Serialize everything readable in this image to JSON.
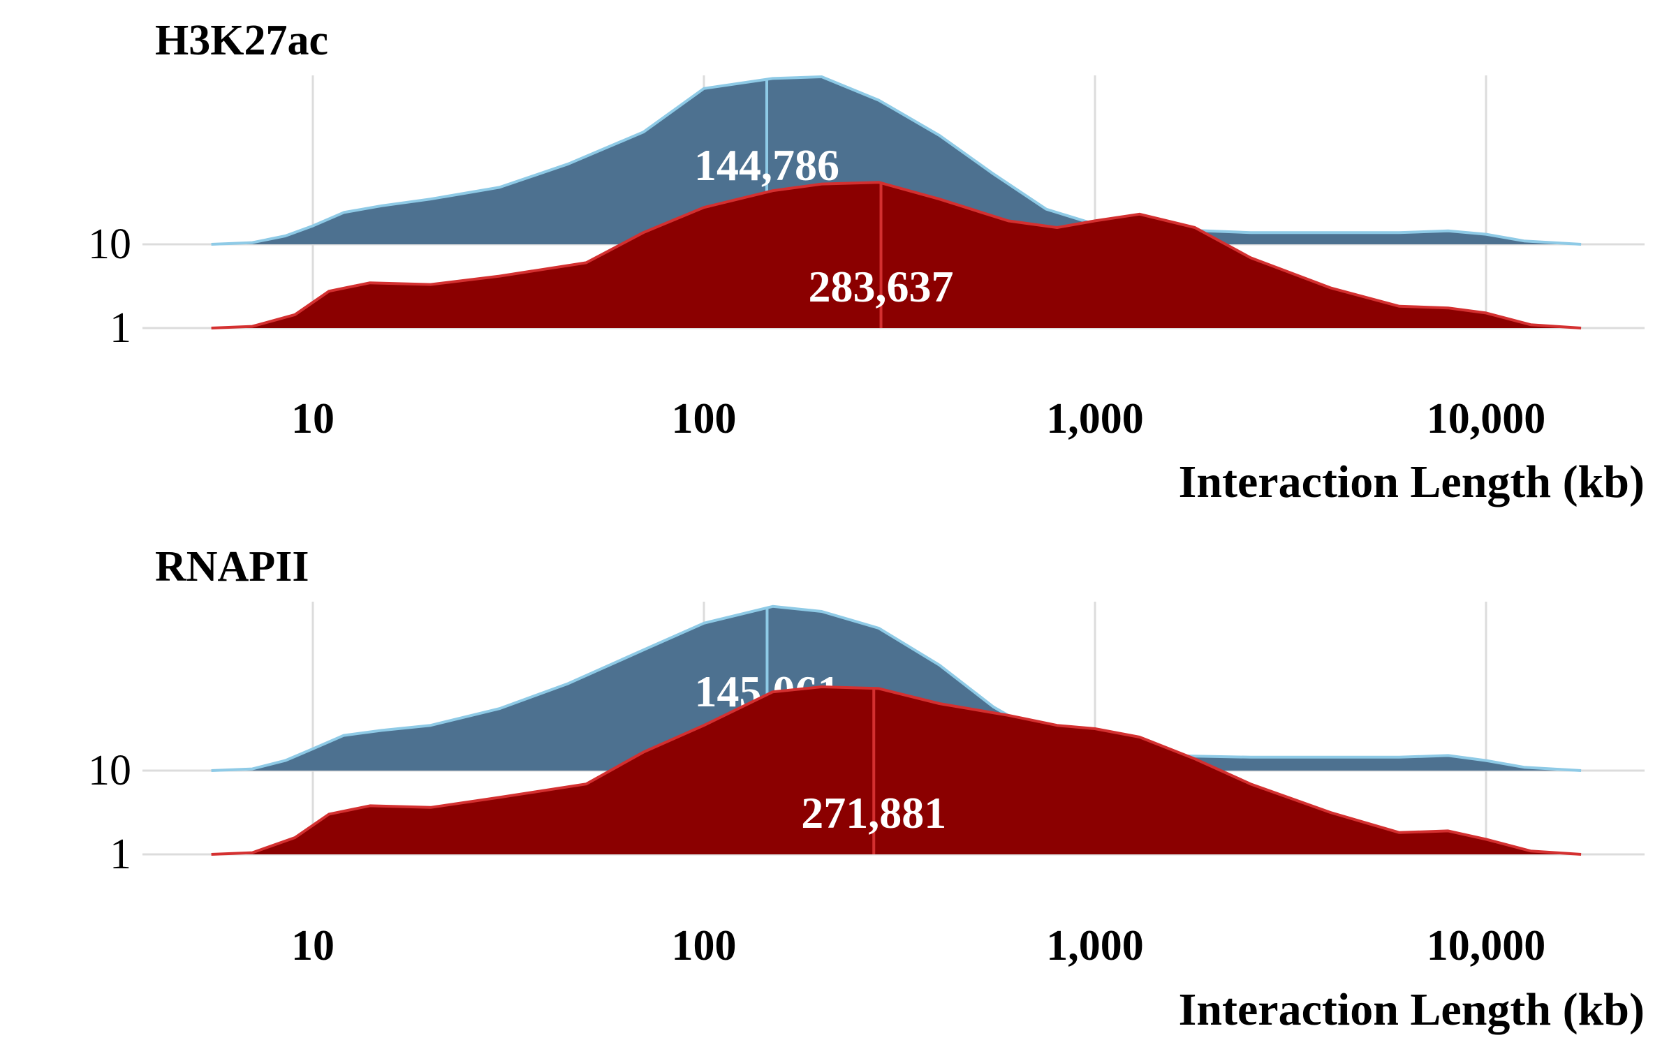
{
  "chart_data": [
    {
      "type": "area",
      "title": "H3K27ac",
      "xlabel": "Interaction Length (kb)",
      "ylabel": "",
      "x_scale": "log10",
      "xlim": [
        5.5,
        17500
      ],
      "x_ticks": [
        {
          "value": 10,
          "label": "10"
        },
        {
          "value": 100,
          "label": "100"
        },
        {
          "value": 1000,
          "label": "1,000"
        },
        {
          "value": 10000,
          "label": "10,000"
        }
      ],
      "rows": [
        "10",
        "1"
      ],
      "grid": true,
      "legend": "none",
      "series": [
        {
          "row": "10",
          "fill": "#4d7190",
          "stroke": "#8ecae6",
          "median": 144.786,
          "median_label": "144,786",
          "points": [
            [
              5.5,
              0
            ],
            [
              7,
              0.01
            ],
            [
              8.5,
              0.05
            ],
            [
              10,
              0.11
            ],
            [
              12,
              0.19
            ],
            [
              15,
              0.23
            ],
            [
              20,
              0.27
            ],
            [
              30,
              0.34
            ],
            [
              45,
              0.48
            ],
            [
              70,
              0.67
            ],
            [
              100,
              0.93
            ],
            [
              150,
              0.99
            ],
            [
              200,
              1.0
            ],
            [
              280,
              0.86
            ],
            [
              400,
              0.65
            ],
            [
              550,
              0.42
            ],
            [
              750,
              0.21
            ],
            [
              1000,
              0.12
            ],
            [
              1500,
              0.09
            ],
            [
              2500,
              0.07
            ],
            [
              4000,
              0.07
            ],
            [
              6000,
              0.07
            ],
            [
              8000,
              0.08
            ],
            [
              10000,
              0.06
            ],
            [
              12500,
              0.02
            ],
            [
              17500,
              0
            ]
          ]
        },
        {
          "row": "1",
          "fill": "#8b0000",
          "stroke": "#d43030",
          "median": 283.637,
          "median_label": "283,637",
          "points": [
            [
              5.5,
              0
            ],
            [
              7,
              0.01
            ],
            [
              9,
              0.08
            ],
            [
              11,
              0.22
            ],
            [
              14,
              0.27
            ],
            [
              20,
              0.26
            ],
            [
              30,
              0.31
            ],
            [
              50,
              0.39
            ],
            [
              70,
              0.57
            ],
            [
              100,
              0.72
            ],
            [
              150,
              0.82
            ],
            [
              200,
              0.86
            ],
            [
              280,
              0.87
            ],
            [
              400,
              0.77
            ],
            [
              600,
              0.64
            ],
            [
              800,
              0.6
            ],
            [
              1000,
              0.64
            ],
            [
              1300,
              0.68
            ],
            [
              1800,
              0.6
            ],
            [
              2500,
              0.42
            ],
            [
              4000,
              0.24
            ],
            [
              6000,
              0.13
            ],
            [
              8000,
              0.12
            ],
            [
              10000,
              0.09
            ],
            [
              13000,
              0.02
            ],
            [
              17500,
              0
            ]
          ]
        }
      ]
    },
    {
      "type": "area",
      "title": "RNAPII",
      "xlabel": "Interaction Length (kb)",
      "ylabel": "",
      "x_scale": "log10",
      "xlim": [
        5.5,
        17500
      ],
      "x_ticks": [
        {
          "value": 10,
          "label": "10"
        },
        {
          "value": 100,
          "label": "100"
        },
        {
          "value": 1000,
          "label": "1,000"
        },
        {
          "value": 10000,
          "label": "10,000"
        }
      ],
      "rows": [
        "10",
        "1"
      ],
      "grid": true,
      "legend": "none",
      "series": [
        {
          "row": "10",
          "fill": "#4d7190",
          "stroke": "#8ecae6",
          "median": 145.061,
          "median_label": "145,061",
          "points": [
            [
              5.5,
              0
            ],
            [
              7,
              0.01
            ],
            [
              8.5,
              0.06
            ],
            [
              10,
              0.13
            ],
            [
              12,
              0.21
            ],
            [
              15,
              0.24
            ],
            [
              20,
              0.27
            ],
            [
              30,
              0.37
            ],
            [
              45,
              0.52
            ],
            [
              70,
              0.72
            ],
            [
              100,
              0.88
            ],
            [
              150,
              0.98
            ],
            [
              200,
              0.95
            ],
            [
              280,
              0.85
            ],
            [
              400,
              0.63
            ],
            [
              550,
              0.38
            ],
            [
              750,
              0.2
            ],
            [
              1000,
              0.12
            ],
            [
              1500,
              0.09
            ],
            [
              2500,
              0.08
            ],
            [
              4000,
              0.08
            ],
            [
              6000,
              0.08
            ],
            [
              8000,
              0.09
            ],
            [
              10000,
              0.06
            ],
            [
              12500,
              0.02
            ],
            [
              17500,
              0
            ]
          ]
        },
        {
          "row": "1",
          "fill": "#8b0000",
          "stroke": "#d43030",
          "median": 271.881,
          "median_label": "271,881",
          "points": [
            [
              5.5,
              0
            ],
            [
              7,
              0.01
            ],
            [
              9,
              0.1
            ],
            [
              11,
              0.24
            ],
            [
              14,
              0.29
            ],
            [
              20,
              0.28
            ],
            [
              30,
              0.34
            ],
            [
              50,
              0.42
            ],
            [
              70,
              0.61
            ],
            [
              100,
              0.77
            ],
            [
              150,
              0.97
            ],
            [
              200,
              1.0
            ],
            [
              280,
              0.99
            ],
            [
              400,
              0.9
            ],
            [
              600,
              0.83
            ],
            [
              800,
              0.77
            ],
            [
              1000,
              0.75
            ],
            [
              1300,
              0.7
            ],
            [
              1800,
              0.57
            ],
            [
              2500,
              0.42
            ],
            [
              4000,
              0.25
            ],
            [
              6000,
              0.13
            ],
            [
              8000,
              0.14
            ],
            [
              10000,
              0.09
            ],
            [
              13000,
              0.02
            ],
            [
              17500,
              0
            ]
          ]
        }
      ]
    }
  ]
}
